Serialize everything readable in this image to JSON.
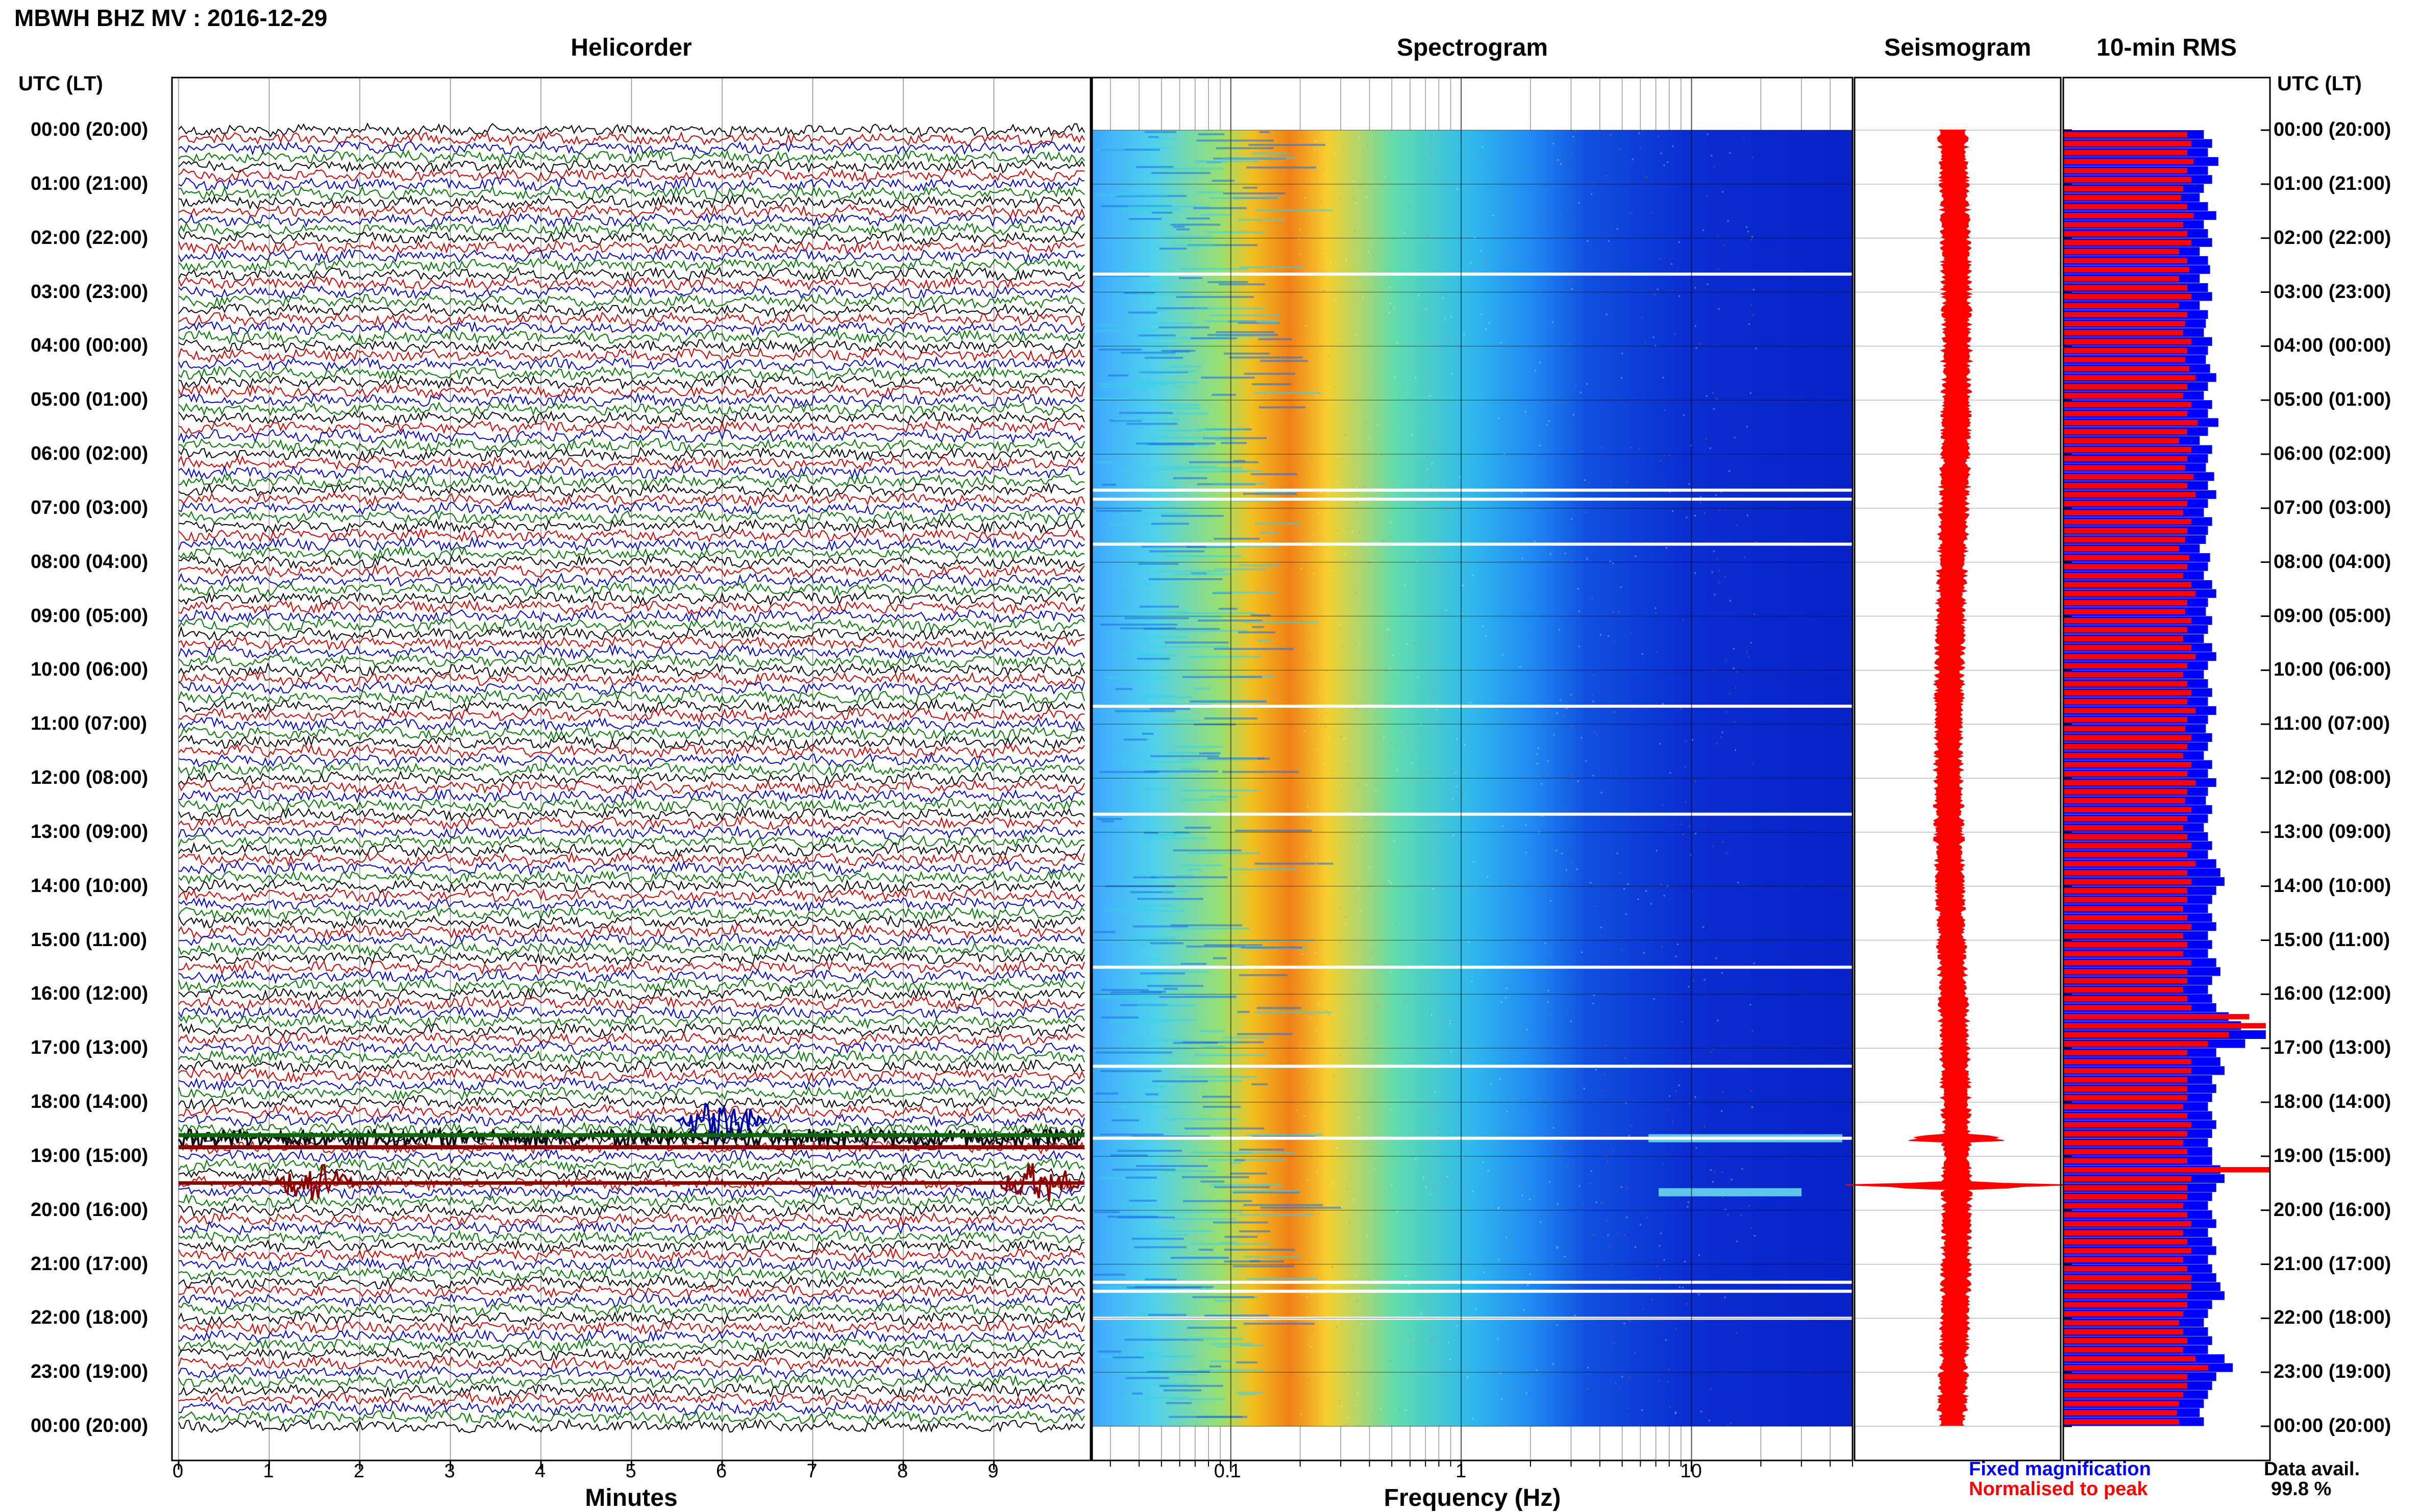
{
  "header": {
    "title": "MBWH BHZ MV : 2016-12-29"
  },
  "panels": {
    "helicorder": "Helicorder",
    "spectrogram": "Spectrogram",
    "seismogram": "Seismogram",
    "rms": "10-min RMS"
  },
  "timezone_label": "UTC (LT)",
  "axes": {
    "minutes_label": "Minutes",
    "frequency_label": "Frequency (Hz)"
  },
  "legend": {
    "fixed": "Fixed magnification",
    "normalised": "Normalised to peak"
  },
  "availability": {
    "label": "Data avail.",
    "value": "99.8 %"
  },
  "colors": {
    "trace_cycle": [
      "#000000",
      "#cc0000",
      "#0000cc",
      "#007700"
    ],
    "rms_fixed": "#0000ff",
    "rms_normalised": "#ff0000",
    "seismogram": "#ff0000"
  },
  "chart_data": {
    "type": "heatmap",
    "station": "MBWH BHZ MV",
    "date": "2016-12-29",
    "hour_labels": [
      "00:00 (20:00)",
      "01:00 (21:00)",
      "02:00 (22:00)",
      "03:00 (23:00)",
      "04:00 (00:00)",
      "05:00 (01:00)",
      "06:00 (02:00)",
      "07:00 (03:00)",
      "08:00 (04:00)",
      "09:00 (05:00)",
      "10:00 (06:00)",
      "11:00 (07:00)",
      "12:00 (08:00)",
      "13:00 (09:00)",
      "14:00 (10:00)",
      "15:00 (11:00)",
      "16:00 (12:00)",
      "17:00 (13:00)",
      "18:00 (14:00)",
      "19:00 (15:00)",
      "20:00 (16:00)",
      "21:00 (17:00)",
      "22:00 (18:00)",
      "23:00 (19:00)",
      "00:00 (20:00)"
    ],
    "minute_ticks": [
      0,
      1,
      2,
      3,
      4,
      5,
      6,
      7,
      8,
      9
    ],
    "frequency_ticks": [
      0.1,
      1,
      10
    ],
    "frequency_tick_labels": [
      "0.1",
      "1",
      "10"
    ],
    "frequency_range_hz": [
      0.025,
      50
    ],
    "rows_per_hour": 6,
    "events": [
      {
        "time": "18:40",
        "minute_range": [
          0,
          10
        ],
        "note": "strong"
      },
      {
        "time": "19:30",
        "minute_range": [
          1,
          2
        ]
      },
      {
        "time": "19:30",
        "minute_range": [
          9,
          10
        ]
      },
      {
        "time": "18:20",
        "minute_range": [
          5.5,
          6.5
        ]
      }
    ],
    "rms": {
      "fixed_values": [
        0.68,
        0.72,
        0.7,
        0.75,
        0.7,
        0.72,
        0.68,
        0.66,
        0.7,
        0.74,
        0.68,
        0.7,
        0.72,
        0.66,
        0.7,
        0.71,
        0.66,
        0.7,
        0.72,
        0.66,
        0.7,
        0.69,
        0.68,
        0.72,
        0.7,
        0.69,
        0.71,
        0.74,
        0.7,
        0.68,
        0.72,
        0.7,
        0.75,
        0.7,
        0.66,
        0.72,
        0.7,
        0.69,
        0.73,
        0.7,
        0.74,
        0.7,
        0.68,
        0.72,
        0.7,
        0.69,
        0.66,
        0.71,
        0.7,
        0.68,
        0.72,
        0.74,
        0.7,
        0.69,
        0.72,
        0.7,
        0.68,
        0.72,
        0.74,
        0.7,
        0.68,
        0.7,
        0.72,
        0.7,
        0.74,
        0.7,
        0.69,
        0.72,
        0.7,
        0.68,
        0.72,
        0.7,
        0.74,
        0.7,
        0.69,
        0.72,
        0.7,
        0.68,
        0.7,
        0.72,
        0.7,
        0.74,
        0.76,
        0.78,
        0.74,
        0.72,
        0.7,
        0.72,
        0.74,
        0.7,
        0.72,
        0.7,
        0.74,
        0.76,
        0.72,
        0.7,
        0.72,
        0.74,
        0.8,
        0.86,
        0.98,
        0.88,
        0.74,
        0.76,
        0.78,
        0.72,
        0.74,
        0.72,
        0.7,
        0.72,
        0.74,
        0.72,
        0.7,
        0.72,
        0.72,
        0.76,
        0.78,
        0.74,
        0.72,
        0.7,
        0.72,
        0.74,
        0.7,
        0.72,
        0.74,
        0.7,
        0.72,
        0.74,
        0.76,
        0.78,
        0.72,
        0.7,
        0.68,
        0.7,
        0.72,
        0.7,
        0.78,
        0.82,
        0.74,
        0.72,
        0.7,
        0.68,
        0.66,
        0.68
      ],
      "normalised_values": [
        0.6,
        0.62,
        0.6,
        0.63,
        0.6,
        0.62,
        0.58,
        0.57,
        0.6,
        0.63,
        0.58,
        0.6,
        0.62,
        0.56,
        0.6,
        0.61,
        0.56,
        0.6,
        0.62,
        0.56,
        0.6,
        0.59,
        0.58,
        0.62,
        0.6,
        0.59,
        0.61,
        0.64,
        0.6,
        0.58,
        0.62,
        0.6,
        0.65,
        0.6,
        0.56,
        0.62,
        0.6,
        0.59,
        0.63,
        0.6,
        0.64,
        0.6,
        0.58,
        0.62,
        0.6,
        0.59,
        0.56,
        0.61,
        0.6,
        0.58,
        0.62,
        0.64,
        0.6,
        0.59,
        0.62,
        0.6,
        0.58,
        0.62,
        0.64,
        0.6,
        0.58,
        0.6,
        0.62,
        0.6,
        0.64,
        0.6,
        0.59,
        0.62,
        0.6,
        0.58,
        0.62,
        0.6,
        0.64,
        0.6,
        0.59,
        0.62,
        0.6,
        0.58,
        0.6,
        0.62,
        0.6,
        0.64,
        0.6,
        0.62,
        0.6,
        0.6,
        0.58,
        0.6,
        0.62,
        0.58,
        0.6,
        0.58,
        0.62,
        0.6,
        0.6,
        0.58,
        0.6,
        0.62,
        0.9,
        0.98,
        0.8,
        0.7,
        0.6,
        0.62,
        0.62,
        0.6,
        0.6,
        0.6,
        0.58,
        0.6,
        0.62,
        0.6,
        0.58,
        0.6,
        0.6,
        1.0,
        0.62,
        0.6,
        0.6,
        0.58,
        0.6,
        0.62,
        0.58,
        0.6,
        0.62,
        0.58,
        0.6,
        0.62,
        0.62,
        0.6,
        0.6,
        0.58,
        0.56,
        0.58,
        0.6,
        0.58,
        0.64,
        0.7,
        0.6,
        0.6,
        0.58,
        0.56,
        0.55,
        0.56
      ]
    }
  }
}
